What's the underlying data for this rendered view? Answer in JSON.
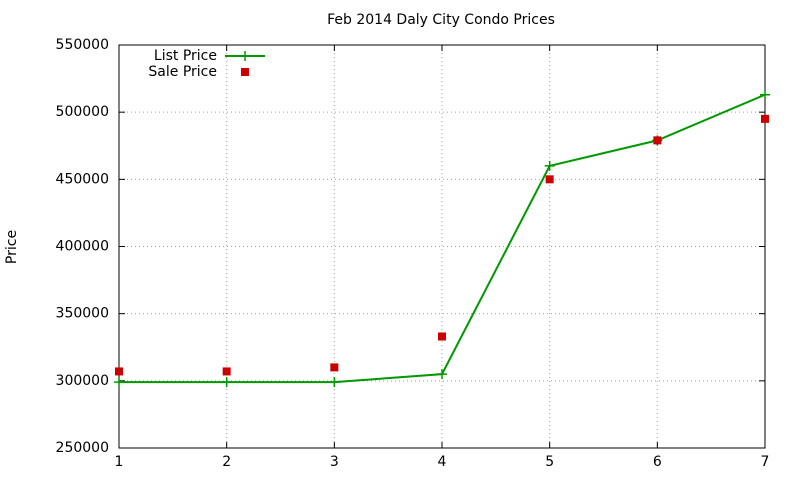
{
  "chart_data": {
    "type": "line",
    "title": "Feb 2014 Daly City Condo Prices",
    "y_label": "Price",
    "x": [
      1,
      2,
      3,
      4,
      5,
      6,
      7
    ],
    "series": [
      {
        "name": "List Price",
        "color": "#009900",
        "marker": "plus",
        "line": true,
        "values": [
          299000,
          299000,
          299000,
          305000,
          460000,
          479000,
          513000
        ]
      },
      {
        "name": "Sale Price",
        "color": "#cc0000",
        "marker": "square",
        "line": false,
        "values": [
          307000,
          307000,
          310000,
          333000,
          450000,
          479000,
          495000
        ]
      }
    ],
    "xlim": [
      1,
      7
    ],
    "xticks": [
      1,
      2,
      3,
      4,
      5,
      6,
      7
    ],
    "ylim": [
      250000,
      550000
    ],
    "yticks": [
      250000,
      300000,
      350000,
      400000,
      450000,
      500000,
      550000
    ],
    "grid": true,
    "legend": "top-left"
  }
}
